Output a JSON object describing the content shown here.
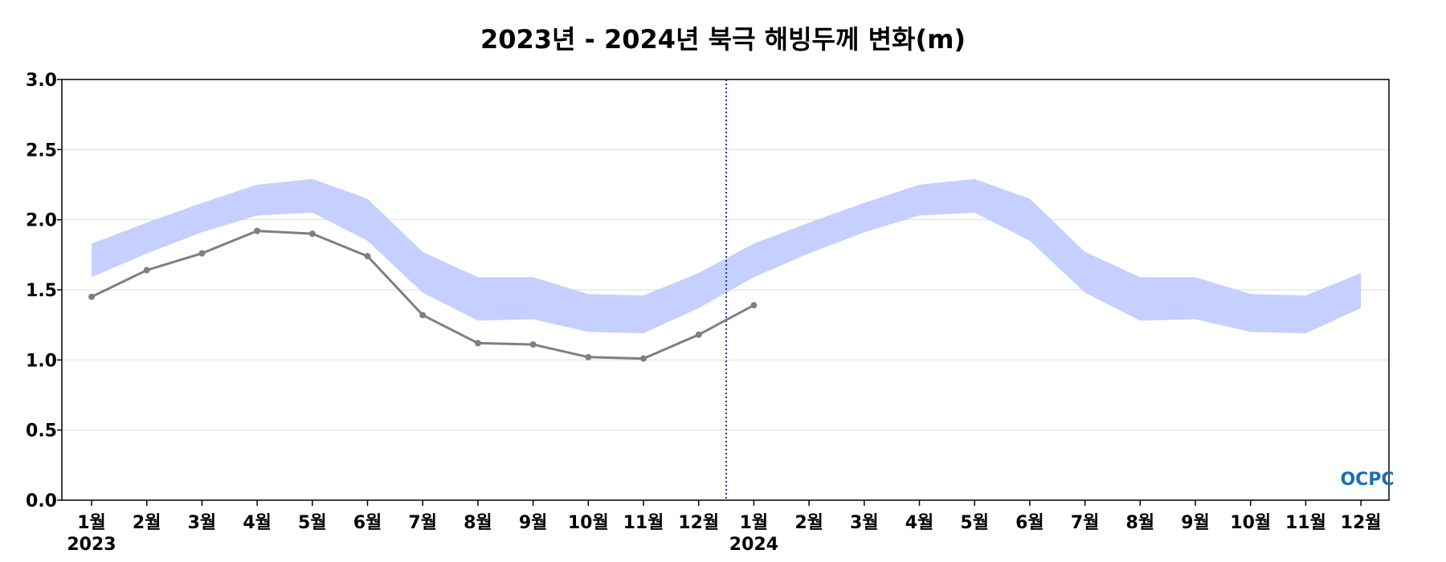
{
  "chart_data": {
    "type": "line",
    "title": "2023년 - 2024년 북극 해빙두께 변화(m)",
    "xlabel": "",
    "ylabel": "",
    "ylim": [
      0,
      3.0
    ],
    "grid": true,
    "y_ticks": [
      "0.0",
      "0.5",
      "1.0",
      "1.5",
      "2.0",
      "2.5",
      "3.0"
    ],
    "categories": [
      "1월",
      "2월",
      "3월",
      "4월",
      "5월",
      "6월",
      "7월",
      "8월",
      "9월",
      "10월",
      "11월",
      "12월",
      "1월",
      "2월",
      "3월",
      "4월",
      "5월",
      "6월",
      "7월",
      "8월",
      "9월",
      "10월",
      "11월",
      "12월"
    ],
    "year_labels": [
      {
        "index": 0,
        "label": "2023"
      },
      {
        "index": 12,
        "label": "2024"
      }
    ],
    "divider_after_index": 11,
    "line_series": [
      {
        "values": [
          1.45,
          1.64,
          1.76,
          1.92,
          1.9,
          1.74,
          1.32,
          1.12,
          1.11,
          1.02,
          1.01,
          1.18,
          1.39
        ]
      }
    ],
    "band_series": [
      {
        "upper": [
          1.83,
          1.98,
          2.12,
          2.25,
          2.29,
          2.15,
          1.77,
          1.59,
          1.59,
          1.47,
          1.46,
          1.62,
          1.83,
          1.98,
          2.12,
          2.25,
          2.29,
          2.15,
          1.77,
          1.59,
          1.59,
          1.47,
          1.46,
          1.62
        ],
        "lower": [
          1.59,
          1.76,
          1.91,
          2.03,
          2.05,
          1.85,
          1.48,
          1.28,
          1.29,
          1.2,
          1.19,
          1.37,
          1.59,
          1.76,
          1.91,
          2.03,
          2.05,
          1.85,
          1.48,
          1.28,
          1.29,
          1.2,
          1.19,
          1.37
        ]
      }
    ],
    "colors": {
      "band": "#c6d0ff",
      "line": "#7f7f7f",
      "divider": "#1f3a8a",
      "grid": "#dddddd"
    }
  },
  "logo": {
    "text": "OCPC"
  }
}
